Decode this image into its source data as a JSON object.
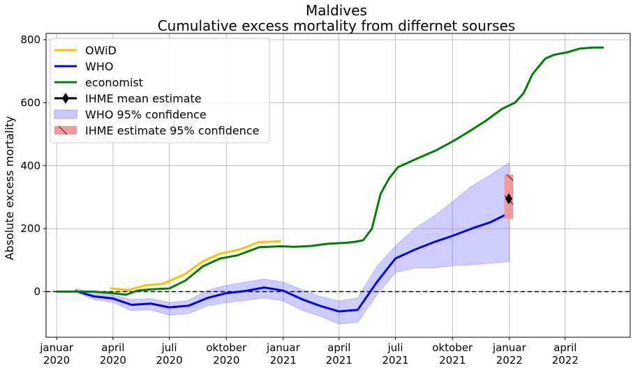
{
  "chart_data": {
    "type": "line",
    "title": "Maldives",
    "subtitle": "Cumulative excess mortality from differnet sourses",
    "ylabel": "Absolute excess mortality",
    "xlabel": "",
    "xlim": [
      "2019-12-15",
      "2022-07-15"
    ],
    "ylim": [
      -145,
      820
    ],
    "grid": true,
    "legend_position": "top-left",
    "y_ticks": [
      0,
      200,
      400,
      600,
      800
    ],
    "x_ticks": [
      {
        "date": "2020-01-01",
        "line1": "januar",
        "line2": "2020"
      },
      {
        "date": "2020-04-01",
        "line1": "april",
        "line2": "2020"
      },
      {
        "date": "2020-07-01",
        "line1": "juli",
        "line2": "2020"
      },
      {
        "date": "2020-10-01",
        "line1": "oktober",
        "line2": "2020"
      },
      {
        "date": "2021-01-01",
        "line1": "januar",
        "line2": "2021"
      },
      {
        "date": "2021-04-01",
        "line1": "april",
        "line2": "2021"
      },
      {
        "date": "2021-07-01",
        "line1": "juli",
        "line2": "2021"
      },
      {
        "date": "2021-10-01",
        "line1": "oktober",
        "line2": "2021"
      },
      {
        "date": "2022-01-01",
        "line1": "januar",
        "line2": "2022"
      },
      {
        "date": "2022-04-01",
        "line1": "april",
        "line2": "2022"
      }
    ],
    "reference_line": {
      "y": 0,
      "style": "dashed",
      "color": "#000000"
    },
    "series": [
      {
        "name": "OWiD",
        "color": "#FFC000",
        "points": [
          [
            "2020-03-29",
            10
          ],
          [
            "2020-04-26",
            5
          ],
          [
            "2020-05-24",
            20
          ],
          [
            "2020-06-21",
            25
          ],
          [
            "2020-07-26",
            55
          ],
          [
            "2020-08-23",
            95
          ],
          [
            "2020-09-20",
            120
          ],
          [
            "2020-10-25",
            135
          ],
          [
            "2020-11-22",
            157
          ],
          [
            "2020-12-27",
            160
          ]
        ]
      },
      {
        "name": "WHO",
        "color": "#0000EE",
        "points": [
          [
            "2020-02-01",
            2
          ],
          [
            "2020-03-01",
            -15
          ],
          [
            "2020-04-01",
            -22
          ],
          [
            "2020-05-01",
            -42
          ],
          [
            "2020-06-01",
            -38
          ],
          [
            "2020-07-01",
            -50
          ],
          [
            "2020-08-01",
            -45
          ],
          [
            "2020-09-01",
            -20
          ],
          [
            "2020-10-01",
            -5
          ],
          [
            "2020-11-01",
            2
          ],
          [
            "2020-12-01",
            13
          ],
          [
            "2021-01-01",
            3
          ],
          [
            "2021-02-01",
            -25
          ],
          [
            "2021-03-01",
            -45
          ],
          [
            "2021-04-01",
            -63
          ],
          [
            "2021-05-01",
            -58
          ],
          [
            "2021-06-01",
            30
          ],
          [
            "2021-07-01",
            105
          ],
          [
            "2021-08-01",
            133
          ],
          [
            "2021-09-01",
            157
          ],
          [
            "2021-10-01",
            177
          ],
          [
            "2021-11-01",
            200
          ],
          [
            "2021-12-01",
            220
          ],
          [
            "2022-01-01",
            250
          ]
        ]
      },
      {
        "name": "economist",
        "color": "#008000",
        "points": [
          [
            "2020-01-01",
            0
          ],
          [
            "2020-02-01",
            0
          ],
          [
            "2020-03-01",
            0
          ],
          [
            "2020-04-01",
            -5
          ],
          [
            "2020-04-22",
            -10
          ],
          [
            "2020-05-10",
            3
          ],
          [
            "2020-06-01",
            7
          ],
          [
            "2020-07-01",
            10
          ],
          [
            "2020-07-27",
            35
          ],
          [
            "2020-08-24",
            80
          ],
          [
            "2020-09-21",
            105
          ],
          [
            "2020-10-19",
            115
          ],
          [
            "2020-11-23",
            141
          ],
          [
            "2020-12-28",
            144
          ],
          [
            "2021-01-18",
            142
          ],
          [
            "2021-02-15",
            145
          ],
          [
            "2021-03-15",
            152
          ],
          [
            "2021-04-12",
            155
          ],
          [
            "2021-04-26",
            158
          ],
          [
            "2021-05-10",
            163
          ],
          [
            "2021-05-24",
            200
          ],
          [
            "2021-06-07",
            310
          ],
          [
            "2021-06-21",
            360
          ],
          [
            "2021-07-05",
            395
          ],
          [
            "2021-08-02",
            420
          ],
          [
            "2021-09-06",
            450
          ],
          [
            "2021-10-04",
            480
          ],
          [
            "2021-10-25",
            505
          ],
          [
            "2021-11-22",
            540
          ],
          [
            "2021-12-20",
            580
          ],
          [
            "2022-01-10",
            600
          ],
          [
            "2022-01-24",
            630
          ],
          [
            "2022-02-07",
            690
          ],
          [
            "2022-02-28",
            740
          ],
          [
            "2022-03-14",
            752
          ],
          [
            "2022-04-04",
            760
          ],
          [
            "2022-04-25",
            772
          ],
          [
            "2022-05-16",
            775
          ],
          [
            "2022-06-01",
            775
          ]
        ]
      }
    ],
    "who_confidence": {
      "name": "WHO 95% confidence",
      "color": "#6666FF",
      "upper": [
        [
          "2020-02-01",
          10
        ],
        [
          "2020-03-01",
          -5
        ],
        [
          "2020-04-01",
          -10
        ],
        [
          "2020-05-01",
          -25
        ],
        [
          "2020-06-01",
          -22
        ],
        [
          "2020-07-01",
          -35
        ],
        [
          "2020-08-01",
          -28
        ],
        [
          "2020-09-01",
          5
        ],
        [
          "2020-10-01",
          20
        ],
        [
          "2020-11-01",
          30
        ],
        [
          "2020-12-01",
          40
        ],
        [
          "2021-01-01",
          30
        ],
        [
          "2021-02-01",
          5
        ],
        [
          "2021-03-01",
          -15
        ],
        [
          "2021-04-01",
          -30
        ],
        [
          "2021-05-01",
          -20
        ],
        [
          "2021-06-01",
          80
        ],
        [
          "2021-07-01",
          145
        ],
        [
          "2021-08-01",
          200
        ],
        [
          "2021-09-01",
          240
        ],
        [
          "2021-10-01",
          285
        ],
        [
          "2021-11-01",
          335
        ],
        [
          "2021-12-01",
          370
        ],
        [
          "2022-01-01",
          410
        ]
      ],
      "lower": [
        [
          "2020-02-01",
          -2
        ],
        [
          "2020-03-01",
          -25
        ],
        [
          "2020-04-01",
          -35
        ],
        [
          "2020-05-01",
          -60
        ],
        [
          "2020-06-01",
          -58
        ],
        [
          "2020-07-01",
          -75
        ],
        [
          "2020-08-01",
          -70
        ],
        [
          "2020-09-01",
          -45
        ],
        [
          "2020-10-01",
          -35
        ],
        [
          "2020-11-01",
          -28
        ],
        [
          "2020-12-01",
          -20
        ],
        [
          "2021-01-01",
          -30
        ],
        [
          "2021-02-01",
          -60
        ],
        [
          "2021-03-01",
          -78
        ],
        [
          "2021-04-01",
          -103
        ],
        [
          "2021-05-01",
          -98
        ],
        [
          "2021-06-01",
          -10
        ],
        [
          "2021-07-01",
          60
        ],
        [
          "2021-08-01",
          75
        ],
        [
          "2021-09-01",
          75
        ],
        [
          "2021-10-01",
          82
        ],
        [
          "2021-11-01",
          85
        ],
        [
          "2021-12-01",
          90
        ],
        [
          "2022-01-01",
          95
        ]
      ]
    },
    "ihme": {
      "mean_name": "IHME mean estimate",
      "ci_name": " IHME estimate 95% confidence",
      "date": "2021-12-31",
      "mean": 295,
      "ci_low": 232,
      "ci_high": 372,
      "ci_date_start": "2021-12-24",
      "ci_date_end": "2022-01-07",
      "ci_color": "#F39898",
      "mean_color": "#000000"
    }
  }
}
